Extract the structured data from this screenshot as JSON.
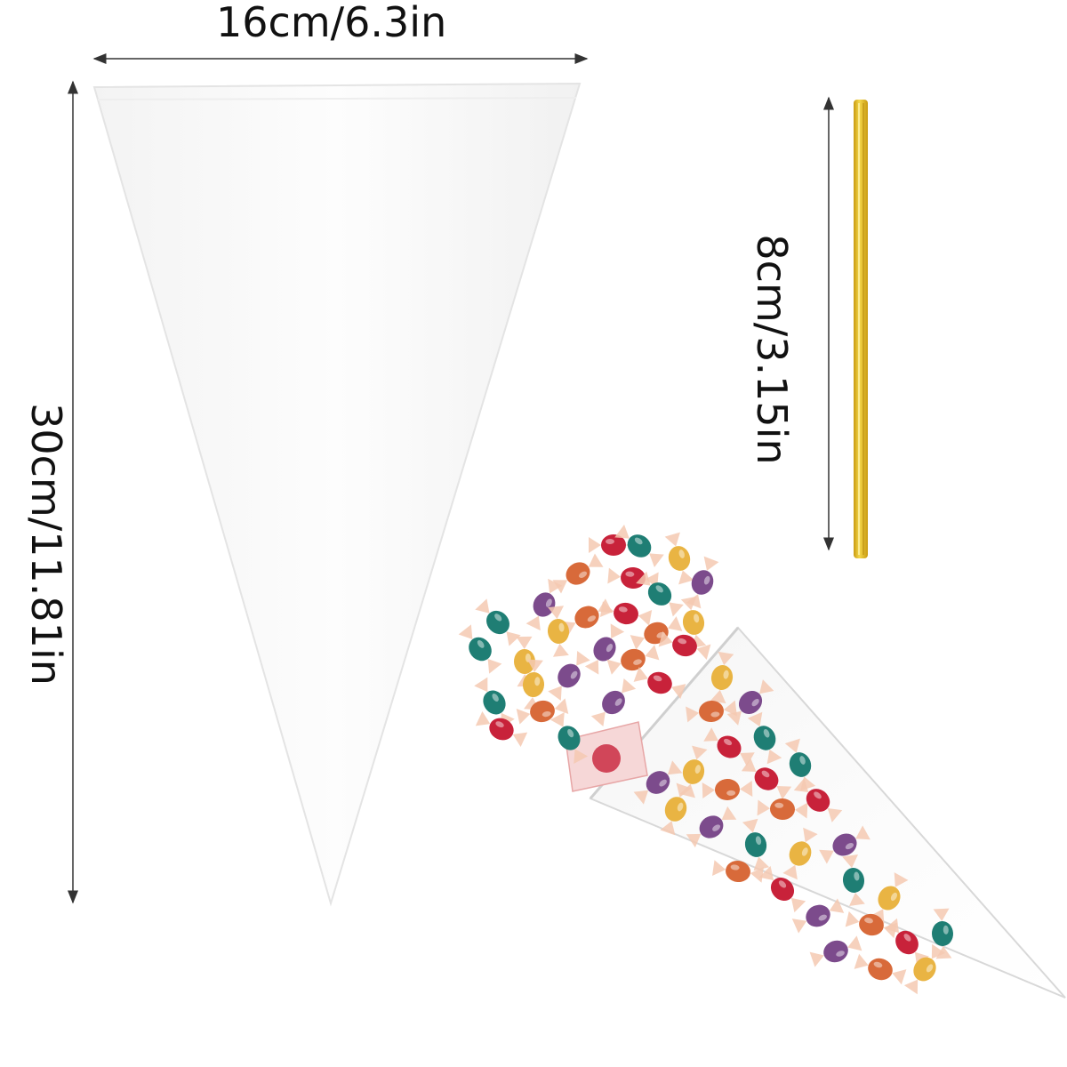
{
  "dimensions": {
    "bag_width": "16cm/6.3in",
    "bag_height": "30cm/11.81in",
    "tie_length": "8cm/3.15in"
  },
  "colors": {
    "background": "#ffffff",
    "arrow": "#333333",
    "bag_fill": "#fafafa",
    "bag_edge": "#e6e6e6",
    "twist_tie": "#e8c21c",
    "twist_tie_shade": "#c99a10",
    "candy": [
      "#c8223a",
      "#1f7e74",
      "#e9b443",
      "#7c4b8c",
      "#d86a3a"
    ],
    "candy_wrapper": "#f4c9b2"
  },
  "icons": [
    "dimension-arrow",
    "cone-bag",
    "twist-tie",
    "candy-filled-bag",
    "wrapped-candy"
  ]
}
